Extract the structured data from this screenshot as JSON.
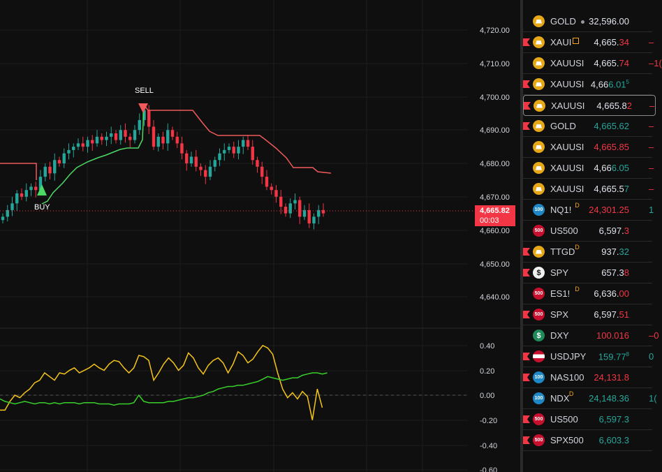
{
  "chart": {
    "price_axis": [
      "4,720.00",
      "4,710.00",
      "4,700.00",
      "4,690.00",
      "4,680.00",
      "4,670.00",
      "4,660.00",
      "4,650.00",
      "4,640.00"
    ],
    "osc_axis": [
      "0.40",
      "0.20",
      "0.00",
      "-0.20",
      "-0.40",
      "-0.60"
    ],
    "buy_label": "BUY",
    "sell_label": "SELL",
    "last_price": "4,665.82",
    "countdown": "00:03",
    "colors": {
      "up": "#26a69a",
      "down": "#f23645",
      "trail_up": "#4cd964",
      "trail_down": "#f05a5a",
      "osc_fast": "#f5c518",
      "osc_slow": "#39d02b"
    }
  },
  "watchlist": {
    "rows": [
      {
        "icon": "gold",
        "symbol": "GOLD",
        "mark": "dot",
        "last": "32,596.00",
        "last_color": "white",
        "chg": "",
        "flag": false
      },
      {
        "icon": "gold",
        "symbol": "XAUI",
        "mark": "edit",
        "last_main": "4,665.",
        "last_tail": "34",
        "last_color": "white",
        "tail_color": "red",
        "chg": "–",
        "flag": true
      },
      {
        "icon": "gold",
        "symbol": "XAUUSI",
        "mark": "",
        "last_main": "4,665.",
        "last_tail": "74",
        "last_color": "white",
        "tail_color": "red",
        "chg": "–1(",
        "flag": false
      },
      {
        "icon": "gold",
        "symbol": "XAUUSI",
        "mark": "",
        "last_main": "4,66",
        "last_tail": "6.01",
        "last_sup": "5",
        "last_color": "white",
        "tail_color": "green",
        "chg": "",
        "flag": true
      },
      {
        "icon": "gold",
        "symbol": "XAUUSI",
        "mark": "",
        "last_main": "4,665.8",
        "last_tail": "2",
        "last_color": "white",
        "tail_color": "red",
        "chg": "–",
        "flag": true,
        "selected": true
      },
      {
        "icon": "gold",
        "symbol": "GOLD",
        "mark": "",
        "last": "4,665.62",
        "last_color": "green",
        "chg": "–",
        "flag": true
      },
      {
        "icon": "gold",
        "symbol": "XAUUSI",
        "mark": "",
        "last": "4,665.85",
        "last_color": "red",
        "chg": "–",
        "flag": false
      },
      {
        "icon": "gold",
        "symbol": "XAUUSI",
        "mark": "",
        "last_main": "4,66",
        "last_tail": "6.05",
        "last_color": "white",
        "tail_color": "green",
        "chg": "–",
        "flag": false
      },
      {
        "icon": "gold",
        "symbol": "XAUUSI",
        "mark": "",
        "last_main": "4,665.5",
        "last_tail": "7",
        "last_color": "white",
        "tail_color": "green",
        "chg": "–",
        "flag": false
      },
      {
        "icon": "blue",
        "icon_text": "100",
        "symbol": "NQ1!",
        "mark": "D",
        "last": "24,301.25",
        "last_color": "red",
        "chg": "1",
        "flag": false
      },
      {
        "icon": "red",
        "icon_text": "500",
        "symbol": "US500",
        "mark": "",
        "last_main": "6,597.",
        "last_tail": "3",
        "last_color": "white",
        "tail_color": "red",
        "chg": "",
        "flag": false
      },
      {
        "icon": "gold",
        "symbol": "TTGD",
        "mark": "D",
        "last_main": "937.",
        "last_tail": "32",
        "last_color": "white",
        "tail_color": "green",
        "chg": "",
        "flag": true
      },
      {
        "icon": "white",
        "icon_text": "$",
        "symbol": "SPY",
        "mark": "",
        "last_main": "657.3",
        "last_tail": "8",
        "last_color": "white",
        "tail_color": "red",
        "chg": "",
        "flag": true
      },
      {
        "icon": "red",
        "icon_text": "500",
        "symbol": "ES1!",
        "mark": "D",
        "last_main": "6,636.",
        "last_tail": "00",
        "last_color": "white",
        "tail_color": "red",
        "chg": "",
        "flag": false
      },
      {
        "icon": "red",
        "icon_text": "500",
        "symbol": "SPX",
        "mark": "",
        "last_main": "6,597.",
        "last_tail": "51",
        "last_color": "white",
        "tail_color": "red",
        "chg": "",
        "flag": true
      },
      {
        "icon": "green",
        "icon_text": "$",
        "symbol": "DXY",
        "mark": "",
        "last": "100.016",
        "last_color": "red",
        "chg": "–0",
        "flag": false
      },
      {
        "icon": "flagus",
        "symbol": "USDJPY",
        "mark": "",
        "last": "159.77",
        "last_sup": "8",
        "last_color": "green",
        "chg": "0",
        "flag": true
      },
      {
        "icon": "blue",
        "icon_text": "100",
        "symbol": "NAS100",
        "mark": "",
        "last": "24,131.8",
        "last_color": "red",
        "chg": "",
        "flag": true
      },
      {
        "icon": "blue",
        "icon_text": "100",
        "symbol": "NDX",
        "mark": "D",
        "last": "24,148.36",
        "last_color": "green",
        "chg": "1(",
        "flag": false
      },
      {
        "icon": "red",
        "icon_text": "500",
        "symbol": "US500",
        "mark": "",
        "last": "6,597.3",
        "last_color": "green",
        "chg": "",
        "flag": true
      },
      {
        "icon": "red",
        "icon_text": "500",
        "symbol": "SPX500",
        "mark": "",
        "last": "6,603.3",
        "last_color": "green",
        "chg": "",
        "flag": true
      }
    ]
  }
}
